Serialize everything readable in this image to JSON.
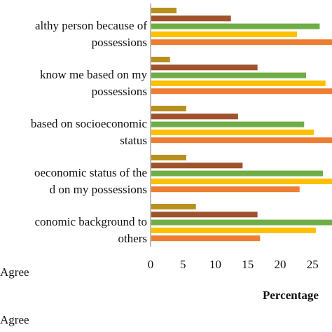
{
  "chart_data": {
    "type": "hbar",
    "categories": [
      [
        "althy person because of",
        "possessions"
      ],
      [
        "know me based on my",
        "possessions"
      ],
      [
        "based on socioeconomic",
        "status"
      ],
      [
        "oeconomic status of the",
        "d on my possessions"
      ],
      [
        "conomic background to",
        "others"
      ]
    ],
    "series": [
      {
        "color": "#b8901e",
        "values": [
          4.0,
          3.0,
          5.5,
          5.5,
          7.0
        ]
      },
      {
        "color": "#a0522d",
        "values": [
          12.4,
          16.5,
          13.5,
          14.2,
          16.5
        ]
      },
      {
        "color": "#70ad47",
        "values": [
          26.1,
          24.0,
          23.7,
          26.6,
          28.5
        ]
      },
      {
        "color": "#ffc000",
        "values": [
          22.6,
          27.0,
          25.2,
          28.5,
          25.5
        ]
      },
      {
        "color": "#ed7d31",
        "values": [
          29,
          29,
          28.5,
          23.0,
          16.9
        ]
      }
    ],
    "xlim": [
      0,
      28.1
    ],
    "xticks": [
      0,
      5,
      10,
      15,
      20,
      25
    ],
    "xlabel": "Percentage",
    "legend": [
      "Agree",
      "Agree"
    ]
  }
}
